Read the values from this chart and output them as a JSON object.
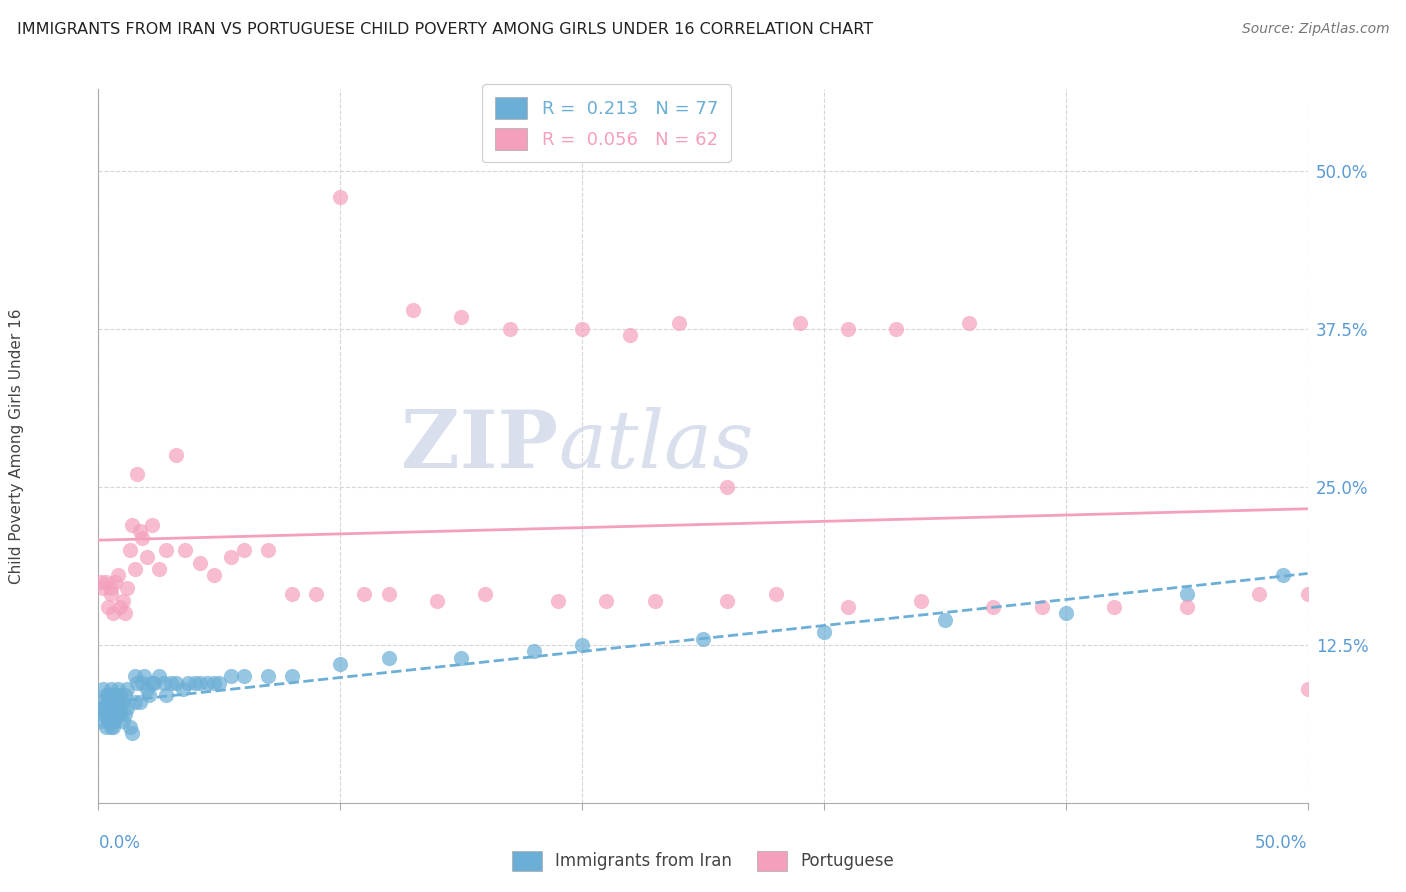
{
  "title": "IMMIGRANTS FROM IRAN VS PORTUGUESE CHILD POVERTY AMONG GIRLS UNDER 16 CORRELATION CHART",
  "source": "Source: ZipAtlas.com",
  "ylabel": "Child Poverty Among Girls Under 16",
  "y_tick_labels": [
    "12.5%",
    "25.0%",
    "37.5%",
    "50.0%"
  ],
  "y_tick_values": [
    0.125,
    0.25,
    0.375,
    0.5
  ],
  "xlim": [
    0.0,
    0.5
  ],
  "ylim": [
    0.0,
    0.565
  ],
  "legend1_label": "R =  0.213   N = 77",
  "legend2_label": "R =  0.056   N = 62",
  "series1_name": "Immigrants from Iran",
  "series2_name": "Portuguese",
  "series1_color": "#6baed6",
  "series2_color": "#f4a0bc",
  "background_color": "#ffffff",
  "series1_x": [
    0.001,
    0.001,
    0.002,
    0.002,
    0.002,
    0.003,
    0.003,
    0.003,
    0.003,
    0.004,
    0.004,
    0.004,
    0.004,
    0.005,
    0.005,
    0.005,
    0.005,
    0.005,
    0.006,
    0.006,
    0.006,
    0.006,
    0.006,
    0.007,
    0.007,
    0.007,
    0.008,
    0.008,
    0.008,
    0.009,
    0.009,
    0.009,
    0.01,
    0.01,
    0.011,
    0.011,
    0.012,
    0.012,
    0.013,
    0.014,
    0.015,
    0.015,
    0.016,
    0.017,
    0.018,
    0.019,
    0.02,
    0.021,
    0.022,
    0.023,
    0.025,
    0.027,
    0.028,
    0.03,
    0.032,
    0.035,
    0.037,
    0.04,
    0.042,
    0.045,
    0.048,
    0.05,
    0.055,
    0.06,
    0.07,
    0.08,
    0.1,
    0.12,
    0.15,
    0.18,
    0.2,
    0.25,
    0.3,
    0.35,
    0.4,
    0.45,
    0.49
  ],
  "series1_y": [
    0.065,
    0.075,
    0.07,
    0.08,
    0.09,
    0.06,
    0.07,
    0.075,
    0.085,
    0.065,
    0.075,
    0.08,
    0.085,
    0.06,
    0.065,
    0.07,
    0.08,
    0.09,
    0.06,
    0.065,
    0.07,
    0.075,
    0.085,
    0.065,
    0.075,
    0.085,
    0.07,
    0.08,
    0.09,
    0.07,
    0.075,
    0.085,
    0.065,
    0.08,
    0.07,
    0.085,
    0.075,
    0.09,
    0.06,
    0.055,
    0.08,
    0.1,
    0.095,
    0.08,
    0.095,
    0.1,
    0.09,
    0.085,
    0.095,
    0.095,
    0.1,
    0.095,
    0.085,
    0.095,
    0.095,
    0.09,
    0.095,
    0.095,
    0.095,
    0.095,
    0.095,
    0.095,
    0.1,
    0.1,
    0.1,
    0.1,
    0.11,
    0.115,
    0.115,
    0.12,
    0.125,
    0.13,
    0.135,
    0.145,
    0.15,
    0.165,
    0.18
  ],
  "series2_x": [
    0.001,
    0.002,
    0.003,
    0.004,
    0.005,
    0.005,
    0.006,
    0.007,
    0.008,
    0.009,
    0.01,
    0.011,
    0.012,
    0.013,
    0.014,
    0.015,
    0.016,
    0.017,
    0.018,
    0.02,
    0.022,
    0.025,
    0.028,
    0.032,
    0.036,
    0.042,
    0.048,
    0.055,
    0.06,
    0.07,
    0.08,
    0.09,
    0.11,
    0.12,
    0.14,
    0.16,
    0.19,
    0.21,
    0.23,
    0.26,
    0.28,
    0.31,
    0.34,
    0.37,
    0.39,
    0.42,
    0.45,
    0.48,
    0.5,
    0.1,
    0.13,
    0.15,
    0.17,
    0.2,
    0.22,
    0.24,
    0.26,
    0.29,
    0.31,
    0.33,
    0.36,
    0.5
  ],
  "series2_y": [
    0.175,
    0.17,
    0.175,
    0.155,
    0.17,
    0.165,
    0.15,
    0.175,
    0.18,
    0.155,
    0.16,
    0.15,
    0.17,
    0.2,
    0.22,
    0.185,
    0.26,
    0.215,
    0.21,
    0.195,
    0.22,
    0.185,
    0.2,
    0.275,
    0.2,
    0.19,
    0.18,
    0.195,
    0.2,
    0.2,
    0.165,
    0.165,
    0.165,
    0.165,
    0.16,
    0.165,
    0.16,
    0.16,
    0.16,
    0.16,
    0.165,
    0.155,
    0.16,
    0.155,
    0.155,
    0.155,
    0.155,
    0.165,
    0.165,
    0.48,
    0.39,
    0.385,
    0.375,
    0.375,
    0.37,
    0.38,
    0.25,
    0.38,
    0.375,
    0.375,
    0.38,
    0.09
  ]
}
